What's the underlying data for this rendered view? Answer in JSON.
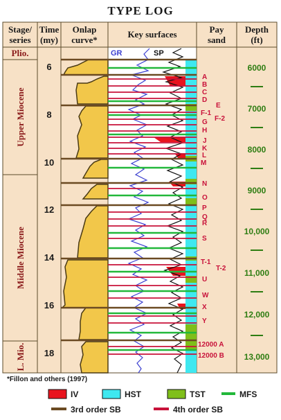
{
  "title": "TYPE LOG",
  "headers": {
    "stage": [
      "Stage/",
      "series"
    ],
    "time": [
      "Time",
      "(my)"
    ],
    "onlap": [
      "Onlap",
      "curve*"
    ],
    "key": "Key surfaces",
    "pay": [
      "Pay",
      "sand"
    ],
    "depth": [
      "Depth",
      "(ft)"
    ]
  },
  "log_labels": {
    "gr": "GR",
    "sp": "SP"
  },
  "stages": [
    "Plio.",
    "Upper Miocene",
    "Middle Miocene",
    "L. Mio."
  ],
  "time_ticks": [
    "6",
    "8",
    "10",
    "12",
    "14",
    "16",
    "18"
  ],
  "depth_ticks": [
    "6000",
    "7000",
    "8000",
    "9000",
    "10,000",
    "11,000",
    "12,000",
    "13,000"
  ],
  "pay_sands": [
    "A",
    "B",
    "C",
    "D",
    "E",
    "F-1",
    "F-2",
    "G",
    "H",
    "J",
    "K",
    "L",
    "M",
    "N",
    "O",
    "P",
    "Q",
    "R",
    "S",
    "T-1",
    "T-2",
    "U",
    "W",
    "X",
    "Y",
    "12000 A",
    "12000 B"
  ],
  "legend": {
    "iv": "IV",
    "hst": "HST",
    "tst": "TST",
    "mfs": "MFS",
    "sb3": "3rd order SB",
    "sb4": "4th order SB"
  },
  "footnote": "*Fillon and others (1997)",
  "colors": {
    "iv": "#e8141e",
    "hst": "#3fe8f0",
    "tst": "#7fbf1a",
    "mfs": "#22b83a",
    "sb3": "#6b4a22",
    "sb4": "#c8123a",
    "onlap": "#f2c74a",
    "stage_bg": "#f7e1c6",
    "gr": "#3b3fd0",
    "sp": "#111111"
  }
}
